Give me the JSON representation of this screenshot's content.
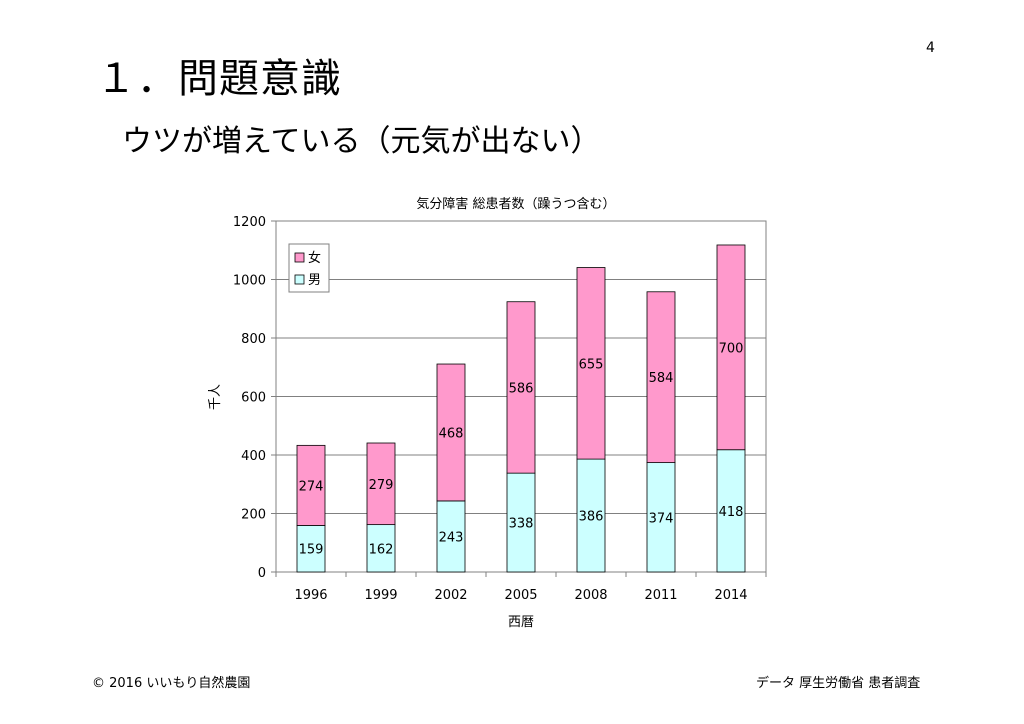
{
  "page_number": "4",
  "title": "１．問題意識",
  "subtitle": "ウツが増えている（元気が出ない）",
  "footer": {
    "copyright": "© 2016 いいもり自然農園",
    "source": "データ 厚生労働省 患者調査"
  },
  "chart_data": {
    "type": "bar",
    "stacked": true,
    "title": "気分障害 総患者数（躁うつ含む）",
    "xlabel": "西暦",
    "ylabel": "千人",
    "ylim": [
      0,
      1200
    ],
    "yticks": [
      0,
      200,
      400,
      600,
      800,
      1000,
      1200
    ],
    "grid": true,
    "legend_position": "top-left",
    "categories": [
      "1996",
      "1999",
      "2002",
      "2005",
      "2008",
      "2011",
      "2014"
    ],
    "series": [
      {
        "name": "男",
        "color": "#ccffff",
        "values": [
          159,
          162,
          243,
          338,
          386,
          374,
          418
        ]
      },
      {
        "name": "女",
        "color": "#ff99cc",
        "values": [
          274,
          279,
          468,
          586,
          655,
          584,
          700
        ]
      }
    ]
  }
}
